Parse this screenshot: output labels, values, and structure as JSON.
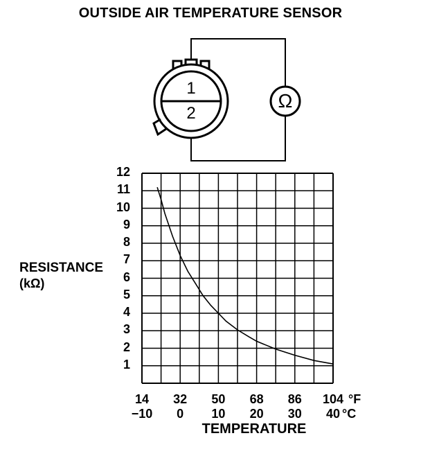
{
  "title": "OUTSIDE AIR TEMPERATURE SENSOR",
  "connector": {
    "pin_top": "1",
    "pin_bottom": "2",
    "meter_symbol": "Ω"
  },
  "colors": {
    "ink": "#000000",
    "paper": "#ffffff"
  },
  "chart_data": {
    "type": "line",
    "ylabel": "RESISTANCE",
    "yunit": "(kΩ)",
    "xlabel": "TEMPERATURE",
    "y_ticks": [
      "12",
      "11",
      "10",
      "9",
      "8",
      "7",
      "6",
      "5",
      "4",
      "3",
      "2",
      "1"
    ],
    "x_ticks_f": [
      "14",
      "32",
      "50",
      "68",
      "86",
      "104"
    ],
    "x_ticks_c": [
      "−10",
      "0",
      "10",
      "20",
      "30",
      "40"
    ],
    "x_unit_f": "°F",
    "x_unit_c": "°C",
    "xlim_c": [
      -10,
      40
    ],
    "ylim": [
      0,
      12
    ],
    "grid": true,
    "series": [
      {
        "x": [
          -6,
          -5,
          -4,
          -2,
          0,
          2,
          4,
          6,
          8,
          10,
          12,
          15,
          18,
          20,
          25,
          30,
          35,
          40
        ],
        "values": [
          11.2,
          10.5,
          9.7,
          8.4,
          7.3,
          6.4,
          5.7,
          5.0,
          4.45,
          4.0,
          3.55,
          3.05,
          2.65,
          2.4,
          1.95,
          1.6,
          1.3,
          1.1
        ]
      }
    ]
  }
}
